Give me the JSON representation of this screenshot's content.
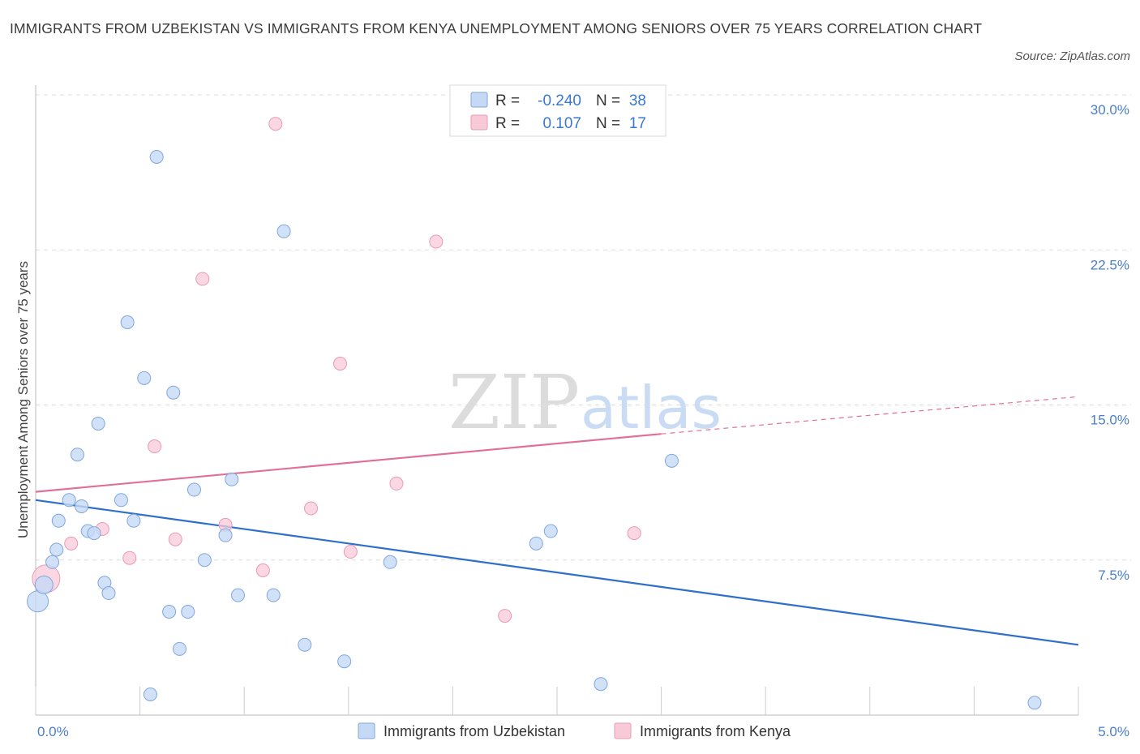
{
  "title": "IMMIGRANTS FROM UZBEKISTAN VS IMMIGRANTS FROM KENYA UNEMPLOYMENT AMONG SENIORS OVER 75 YEARS CORRELATION CHART",
  "source": "Source: ZipAtlas.com",
  "watermark": {
    "zip": "ZIP",
    "atlas": "atlas"
  },
  "colors": {
    "uzbekistan_fill": "#c5d9f5",
    "uzbekistan_stroke": "#7ea7de",
    "uzbekistan_line": "#2f6fcc",
    "kenya_fill": "#f8cad8",
    "kenya_stroke": "#e99ab5",
    "kenya_line": "#e0709a",
    "axis_text": "#4a7fc9",
    "grid": "#dddddd"
  },
  "legend": {
    "rows": [
      {
        "r_label": "R =",
        "r_value": "-0.240",
        "n_label": "N =",
        "n_value": "38"
      },
      {
        "r_label": "R =",
        "r_value": "0.107",
        "n_label": "N =",
        "n_value": "17"
      }
    ]
  },
  "chart_data": {
    "type": "scatter",
    "title": "IMMIGRANTS FROM UZBEKISTAN VS IMMIGRANTS FROM KENYA UNEMPLOYMENT AMONG SENIORS OVER 75 YEARS CORRELATION CHART",
    "xlabel": "",
    "ylabel": "Unemployment Among Seniors over 75 years",
    "xlim": [
      0,
      5
    ],
    "ylim": [
      0,
      30
    ],
    "x_tick_labels": [
      "0.0%",
      "5.0%"
    ],
    "y_ticks": [
      7.5,
      15,
      22.5,
      30
    ],
    "y_tick_labels": [
      "7.5%",
      "15.0%",
      "22.5%",
      "30.0%"
    ],
    "legend_position": "top-center",
    "series": [
      {
        "name": "Immigrants from Uzbekistan",
        "R": -0.24,
        "N": 38,
        "trend": {
          "x": [
            0.0,
            5.0
          ],
          "y": [
            10.4,
            3.4
          ]
        },
        "points": [
          [
            0.01,
            5.5
          ],
          [
            0.04,
            6.3
          ],
          [
            0.08,
            7.4
          ],
          [
            0.1,
            8.0
          ],
          [
            0.11,
            9.4
          ],
          [
            0.16,
            10.4
          ],
          [
            0.2,
            12.6
          ],
          [
            0.22,
            10.1
          ],
          [
            0.25,
            8.9
          ],
          [
            0.28,
            8.8
          ],
          [
            0.3,
            14.1
          ],
          [
            0.33,
            6.4
          ],
          [
            0.35,
            5.9
          ],
          [
            0.41,
            10.4
          ],
          [
            0.44,
            19.0
          ],
          [
            0.47,
            9.4
          ],
          [
            0.52,
            16.3
          ],
          [
            0.55,
            1.0
          ],
          [
            0.58,
            27.0
          ],
          [
            0.64,
            5.0
          ],
          [
            0.66,
            15.6
          ],
          [
            0.69,
            3.2
          ],
          [
            0.73,
            5.0
          ],
          [
            0.76,
            10.9
          ],
          [
            0.81,
            7.5
          ],
          [
            0.91,
            8.7
          ],
          [
            0.94,
            11.4
          ],
          [
            0.97,
            5.8
          ],
          [
            1.14,
            5.8
          ],
          [
            1.19,
            23.4
          ],
          [
            1.29,
            3.4
          ],
          [
            1.48,
            2.6
          ],
          [
            1.7,
            7.4
          ],
          [
            2.4,
            8.3
          ],
          [
            2.47,
            8.9
          ],
          [
            2.71,
            1.5
          ],
          [
            3.05,
            12.3
          ],
          [
            4.79,
            0.6
          ]
        ]
      },
      {
        "name": "Immigrants from Kenya",
        "R": 0.107,
        "N": 17,
        "trend": {
          "x": [
            0.0,
            3.0
          ],
          "y": [
            10.8,
            13.6
          ]
        },
        "trend_extension": {
          "x": [
            3.0,
            5.0
          ],
          "y": [
            13.6,
            15.4
          ]
        },
        "points": [
          [
            0.05,
            6.6
          ],
          [
            0.17,
            8.3
          ],
          [
            0.32,
            9.0
          ],
          [
            0.45,
            7.6
          ],
          [
            0.57,
            13.0
          ],
          [
            0.67,
            8.5
          ],
          [
            0.8,
            21.1
          ],
          [
            0.91,
            9.2
          ],
          [
            1.09,
            7.0
          ],
          [
            1.15,
            28.6
          ],
          [
            1.32,
            10.0
          ],
          [
            1.46,
            17.0
          ],
          [
            1.51,
            7.9
          ],
          [
            1.73,
            11.2
          ],
          [
            1.92,
            22.9
          ],
          [
            2.25,
            4.8
          ],
          [
            2.87,
            8.8
          ]
        ]
      }
    ]
  }
}
